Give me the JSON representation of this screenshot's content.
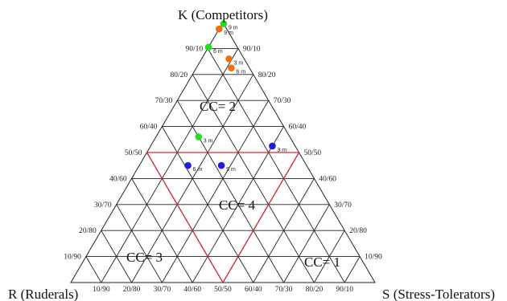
{
  "diagram": {
    "corner_labels": {
      "top": "K (Competitors)",
      "left": "R (Ruderals)",
      "right": "S (Stress-Tolerators)"
    },
    "left_edge_ticks": [
      "90/10",
      "80/20",
      "70/30",
      "60/40",
      "50/50",
      "40/60",
      "30/70",
      "20/80",
      "10/90"
    ],
    "right_edge_ticks": [
      "90/10",
      "80/20",
      "70/30",
      "60/40",
      "50/50",
      "40/60",
      "30/70",
      "20/80",
      "10/90"
    ],
    "bottom_edge_ticks": [
      "10/90",
      "20/80",
      "30/70",
      "40/60",
      "50/50",
      "60/40",
      "70/30",
      "80/20",
      "90/10"
    ],
    "regions": [
      {
        "label": "CC= 2"
      },
      {
        "label": "CC= 4"
      },
      {
        "label": "CC= 3"
      },
      {
        "label": "CC= 1"
      }
    ],
    "points": [
      {
        "label": "9 m",
        "color": "#22dd22",
        "K": 0.995,
        "S": 0.005
      },
      {
        "label": "9 m",
        "color": "#f07010",
        "K": 0.975,
        "S": 0.0
      },
      {
        "label": "6 m",
        "color": "#22dd22",
        "K": 0.905,
        "S": 0.0
      },
      {
        "label": "3 m",
        "color": "#f07010",
        "K": 0.86,
        "S": 0.09
      },
      {
        "label": "6 m",
        "color": "#f07010",
        "K": 0.825,
        "S": 0.115
      },
      {
        "label": "3 m",
        "color": "#22dd22",
        "K": 0.56,
        "S": 0.14
      },
      {
        "label": "3 m",
        "color": "#1f1fe0",
        "K": 0.525,
        "S": 0.4
      },
      {
        "label": "6 m",
        "color": "#1f1fe0",
        "K": 0.45,
        "S": 0.16
      },
      {
        "label": "9 m",
        "color": "#1f1fe0",
        "K": 0.45,
        "S": 0.27
      }
    ]
  }
}
